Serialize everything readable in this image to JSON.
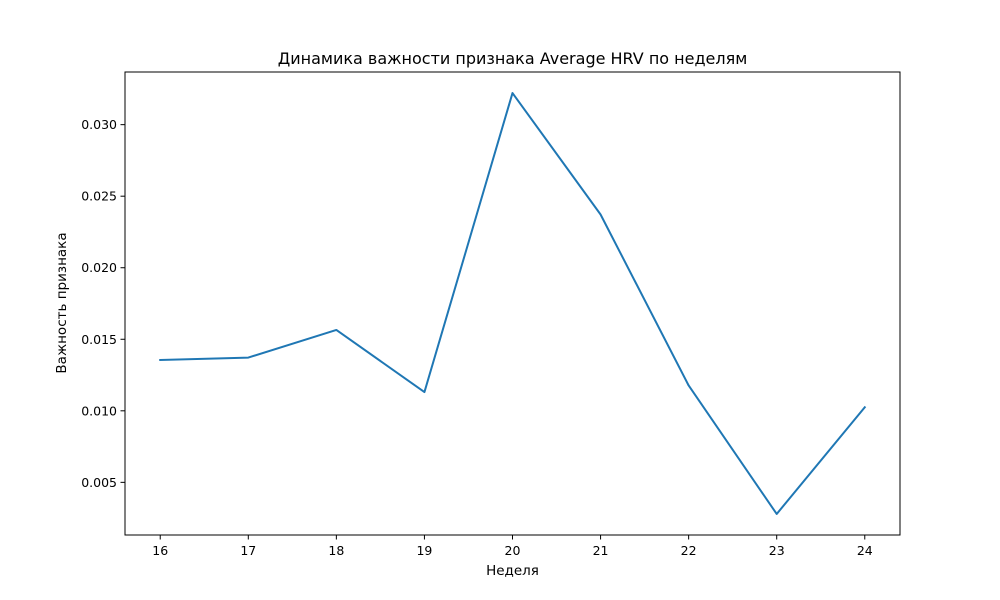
{
  "chart_data": {
    "type": "line",
    "title": "Динамика важности признака Average HRV по неделям",
    "xlabel": "Неделя",
    "ylabel": "Важность признака",
    "x": [
      16,
      17,
      18,
      19,
      20,
      21,
      22,
      23,
      24
    ],
    "y": [
      0.01355,
      0.01372,
      0.01565,
      0.01131,
      0.03221,
      0.02372,
      0.01177,
      0.00279,
      0.01025
    ],
    "xticks": [
      16,
      17,
      18,
      19,
      20,
      21,
      22,
      23,
      24
    ],
    "yticks": [
      0.005,
      0.01,
      0.015,
      0.02,
      0.025,
      0.03
    ],
    "ytick_labels": [
      "0.005",
      "0.010",
      "0.015",
      "0.020",
      "0.025",
      "0.030"
    ],
    "xlim": [
      15.6,
      24.4
    ],
    "ylim": [
      0.00132,
      0.03368
    ],
    "grid": false,
    "line_color": "#1f77b4"
  }
}
